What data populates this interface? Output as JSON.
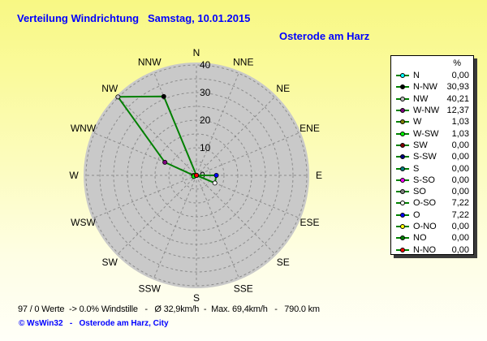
{
  "header": {
    "title": "Verteilung Windrichtung   Samstag, 10.01.2015",
    "subtitle": "Osterode am Harz",
    "title_color": "#0000ff"
  },
  "footer": {
    "stats": "97 / 0 Werte  -> 0.0% Windstille   -   Ø 32,9km/h  -  Max. 69,4km/h   -   790.0 km",
    "copyright": "© WsWin32   -   Osterode am Harz, City"
  },
  "chart_data": {
    "type": "line",
    "projection": "polar-wind-rose",
    "title": "Verteilung Windrichtung   Samstag, 10.01.2015",
    "station": "Osterode am Harz",
    "unit_header": "%",
    "categories": [
      "N",
      "N-NW",
      "NW",
      "W-NW",
      "W",
      "W-SW",
      "SW",
      "S-SW",
      "S",
      "S-SO",
      "SO",
      "O-SO",
      "O",
      "O-NO",
      "NO",
      "N-NO"
    ],
    "values": [
      0.0,
      30.93,
      40.21,
      12.37,
      1.03,
      1.03,
      0.0,
      0.0,
      0.0,
      0.0,
      0.0,
      7.22,
      7.22,
      0.0,
      0.0,
      0.0
    ],
    "value_labels": [
      "0,00",
      "30,93",
      "40,21",
      "12,37",
      "1,03",
      "1,03",
      "0,00",
      "0,00",
      "0,00",
      "0,00",
      "0,00",
      "7,22",
      "7,22",
      "0,00",
      "0,00",
      "0,00"
    ],
    "marker_colors": [
      "#00FFFF",
      "#000000",
      "#C0C0C0",
      "#800080",
      "#808000",
      "#00FF00",
      "#800000",
      "#000080",
      "#008080",
      "#FF00FF",
      "#808080",
      "#FFFFFF",
      "#0000FF",
      "#FFFF00",
      "#008000",
      "#FF0000"
    ],
    "compass_labels": [
      "N",
      "NNE",
      "NE",
      "ENE",
      "E",
      "ESE",
      "SE",
      "SSE",
      "S",
      "SSW",
      "SW",
      "WSW",
      "W",
      "WNW",
      "NW",
      "NNW"
    ],
    "radial_ticks": [
      0,
      10,
      20,
      30,
      40
    ],
    "grid_step": 5,
    "r_max": 40,
    "ylim": [
      0,
      40
    ],
    "angular_direction": "counterclockwise-from-north",
    "line_color": "#008000",
    "disk_color": "#C9C9C9",
    "grid_color": "#8C8C8C",
    "legend_position": "right"
  }
}
